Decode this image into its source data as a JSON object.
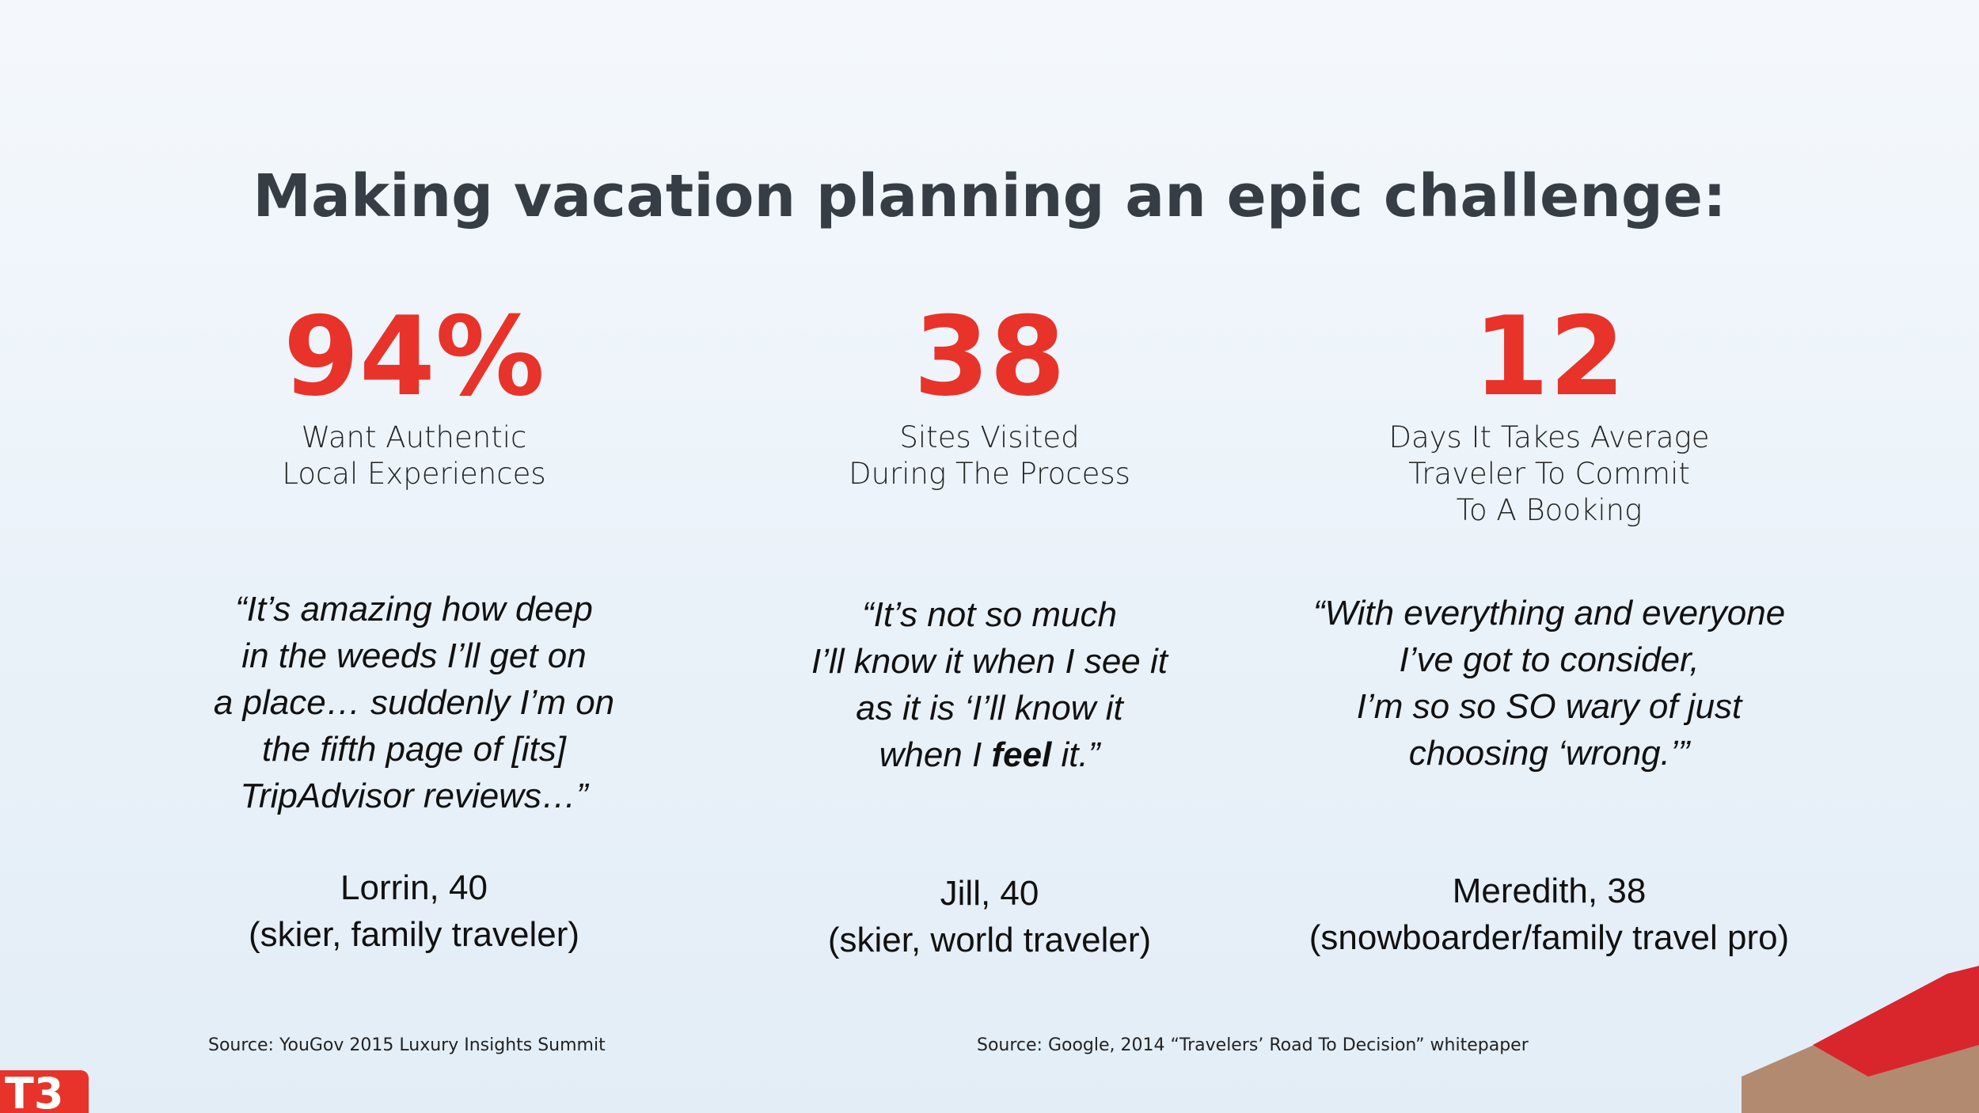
{
  "title": "Making vacation planning an epic challenge:",
  "stats": [
    {
      "number": "94%",
      "label": [
        "Want Authentic",
        "Local Experiences"
      ],
      "quote": [
        [
          {
            "text": "“It’s amazing how deep"
          }
        ],
        [
          {
            "text": "in the weeds I’ll get on"
          }
        ],
        [
          {
            "text": "a place… suddenly I’m on"
          }
        ],
        [
          {
            "text": "the fifth page of [its]"
          }
        ],
        [
          {
            "text": "TripAdvisor reviews…”"
          }
        ]
      ],
      "attribution": [
        "Lorrin, 40",
        "(skier, family traveler)"
      ]
    },
    {
      "number": "38",
      "label": [
        "Sites Visited",
        "During The Process"
      ],
      "quote": [
        [
          {
            "text": "“It’s not so much"
          }
        ],
        [
          {
            "text": "I’ll know it when I see it"
          }
        ],
        [
          {
            "text": "as it is ‘I’ll know it"
          }
        ],
        [
          {
            "text": "when I "
          },
          {
            "text": "feel",
            "bold": true
          },
          {
            "text": " it.”"
          }
        ]
      ],
      "attribution": [
        "Jill, 40",
        "(skier, world traveler)"
      ]
    },
    {
      "number": "12",
      "label": [
        "Days It Takes Average",
        "Traveler To Commit",
        "To A Booking"
      ],
      "quote": [
        [
          {
            "text": "“With everything and everyone"
          }
        ],
        [
          {
            "text": "I’ve got to consider,"
          }
        ],
        [
          {
            "text": "I’m so so SO wary of just"
          }
        ],
        [
          {
            "text": "choosing ‘wrong.’”"
          }
        ]
      ],
      "attribution": [
        "Meredith, 38",
        "(snowboarder/family travel pro)"
      ]
    }
  ],
  "sources": [
    "Source: YouGov 2015 Luxury Insights Summit",
    "Source: Google, 2014 “Travelers’ Road To Decision” whitepaper"
  ],
  "logo": "T3"
}
